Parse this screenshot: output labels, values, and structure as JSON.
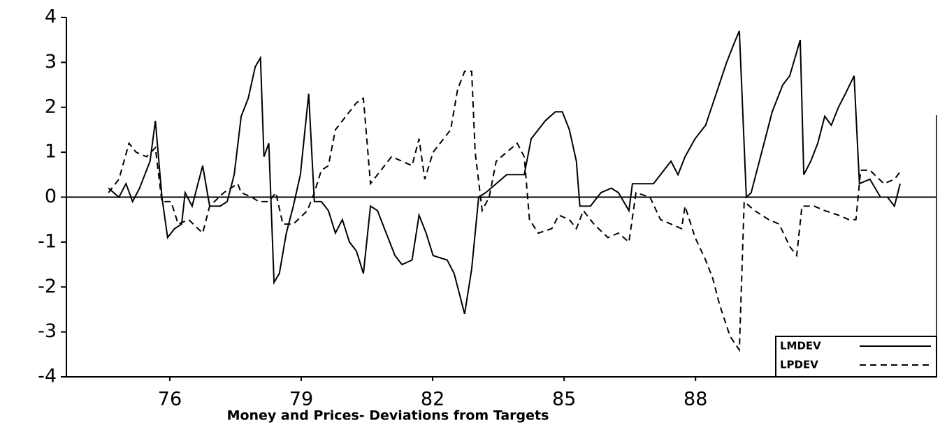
{
  "chart_data": {
    "type": "line",
    "title": "Money and Prices- Deviations from Targets",
    "xlim": [
      73.64,
      93.5
    ],
    "xticks": [
      76,
      79,
      82,
      85,
      88
    ],
    "ylim": [
      -4,
      4
    ],
    "yticks": [
      -4,
      -3,
      -2,
      -1,
      0,
      1,
      2,
      3,
      4
    ],
    "legend": "lower right",
    "series": [
      {
        "name": "LMDEV",
        "color": "#000000",
        "style": "solid",
        "x": [
          74.6,
          74.84,
          75.0,
          75.15,
          75.31,
          75.55,
          75.67,
          75.82,
          75.95,
          76.11,
          76.27,
          76.35,
          76.51,
          76.75,
          76.91,
          77.15,
          77.31,
          77.47,
          77.63,
          77.79,
          77.95,
          78.07,
          78.15,
          78.26,
          78.38,
          78.5,
          78.66,
          78.82,
          78.98,
          79.17,
          79.3,
          79.46,
          79.62,
          79.78,
          79.94,
          80.1,
          80.26,
          80.42,
          80.58,
          80.74,
          80.9,
          81.14,
          81.3,
          81.53,
          81.69,
          81.85,
          82.01,
          82.33,
          82.49,
          82.73,
          82.89,
          83.05,
          83.21,
          83.45,
          83.69,
          84.09,
          84.25,
          84.57,
          84.8,
          84.96,
          85.12,
          85.28,
          85.36,
          85.6,
          85.84,
          86.08,
          86.24,
          86.48,
          86.56,
          86.8,
          87.04,
          87.2,
          87.44,
          87.6,
          87.76,
          87.99,
          88.23,
          88.47,
          88.71,
          88.87,
          89.0,
          89.16,
          89.27,
          89.51,
          89.75,
          89.99,
          90.15,
          90.39,
          90.47,
          90.63,
          90.79,
          90.95,
          91.1,
          91.26,
          91.42,
          91.62,
          91.74,
          91.98,
          92.22,
          92.38,
          92.54,
          92.67
        ],
        "values": [
          0.2,
          0.0,
          0.3,
          -0.1,
          0.2,
          0.8,
          1.7,
          0.0,
          -0.9,
          -0.7,
          -0.6,
          0.1,
          -0.2,
          0.7,
          -0.2,
          -0.2,
          -0.1,
          0.5,
          1.8,
          2.2,
          2.9,
          3.1,
          0.9,
          1.2,
          -1.9,
          -1.7,
          -0.8,
          -0.2,
          0.5,
          2.3,
          -0.1,
          -0.1,
          -0.3,
          -0.8,
          -0.5,
          -1.0,
          -1.2,
          -1.7,
          -0.2,
          -0.3,
          -0.7,
          -1.3,
          -1.5,
          -1.4,
          -0.4,
          -0.8,
          -1.3,
          -1.4,
          -1.7,
          -2.6,
          -1.6,
          0.0,
          0.1,
          0.3,
          0.5,
          0.5,
          1.3,
          1.7,
          1.9,
          1.9,
          1.5,
          0.8,
          -0.2,
          -0.2,
          0.1,
          0.2,
          0.1,
          -0.3,
          0.3,
          0.3,
          0.3,
          0.5,
          0.8,
          0.5,
          0.9,
          1.3,
          1.6,
          2.3,
          3.0,
          3.4,
          3.7,
          0.0,
          0.1,
          1.0,
          1.9,
          2.5,
          2.7,
          3.5,
          0.5,
          0.8,
          1.2,
          1.8,
          1.6,
          2.0,
          2.3,
          2.7,
          0.3,
          0.4,
          0.0,
          0.0,
          -0.2,
          0.3
        ]
      },
      {
        "name": "LPDEV",
        "color": "#000000",
        "style": "dashed",
        "x": [
          74.6,
          74.84,
          75.07,
          75.23,
          75.47,
          75.67,
          75.82,
          76.03,
          76.19,
          76.43,
          76.75,
          76.91,
          77.23,
          77.39,
          77.55,
          77.63,
          77.87,
          78.03,
          78.26,
          78.42,
          78.58,
          78.82,
          79.14,
          79.3,
          79.46,
          79.62,
          79.78,
          80.02,
          80.26,
          80.42,
          80.58,
          80.82,
          81.06,
          81.3,
          81.53,
          81.69,
          81.82,
          82.01,
          82.25,
          82.41,
          82.57,
          82.73,
          82.89,
          82.97,
          83.13,
          83.29,
          83.45,
          83.69,
          83.93,
          84.09,
          84.21,
          84.41,
          84.72,
          84.88,
          85.12,
          85.28,
          85.44,
          85.68,
          86.0,
          86.24,
          86.48,
          86.64,
          86.96,
          87.2,
          87.44,
          87.68,
          87.76,
          87.99,
          88.23,
          88.39,
          88.55,
          88.79,
          89.0,
          89.11,
          89.35,
          89.67,
          89.91,
          90.15,
          90.31,
          90.43,
          90.71,
          90.95,
          91.26,
          91.5,
          91.66,
          91.77,
          91.98,
          92.3,
          92.54,
          92.7
        ],
        "values": [
          0.1,
          0.4,
          1.2,
          1.0,
          0.9,
          1.1,
          -0.1,
          -0.1,
          -0.6,
          -0.5,
          -0.8,
          -0.2,
          0.1,
          0.2,
          0.3,
          0.1,
          0.0,
          -0.1,
          -0.1,
          0.1,
          -0.6,
          -0.6,
          -0.3,
          0.1,
          0.6,
          0.7,
          1.5,
          1.8,
          2.1,
          2.2,
          0.3,
          0.6,
          0.9,
          0.8,
          0.7,
          1.3,
          0.4,
          1.0,
          1.3,
          1.5,
          2.4,
          2.8,
          2.8,
          1.0,
          -0.3,
          0.0,
          0.8,
          1.0,
          1.2,
          0.9,
          -0.5,
          -0.8,
          -0.7,
          -0.4,
          -0.5,
          -0.7,
          -0.3,
          -0.6,
          -0.9,
          -0.8,
          -1.0,
          0.1,
          0.0,
          -0.5,
          -0.6,
          -0.7,
          -0.2,
          -0.9,
          -1.4,
          -1.8,
          -2.4,
          -3.1,
          -3.4,
          -0.1,
          -0.3,
          -0.5,
          -0.6,
          -1.1,
          -1.3,
          -0.2,
          -0.2,
          -0.3,
          -0.4,
          -0.5,
          -0.5,
          0.6,
          0.6,
          0.3,
          0.4,
          0.6
        ]
      }
    ]
  }
}
